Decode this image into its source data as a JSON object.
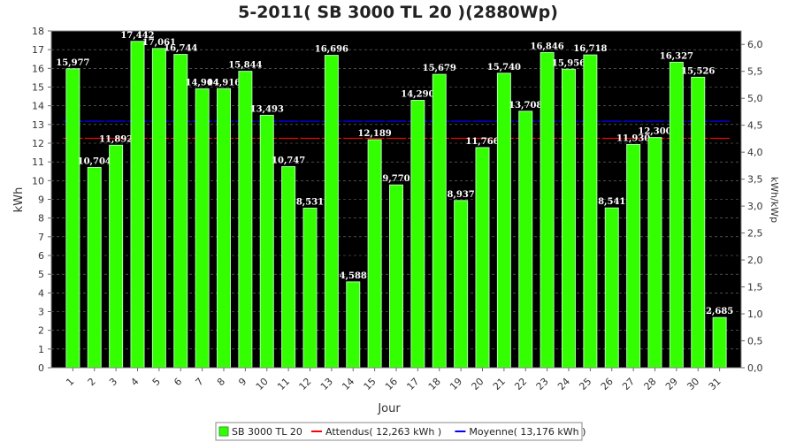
{
  "chart_data": {
    "type": "bar",
    "title": "5-2011( SB 3000 TL 20 )(2880Wp)",
    "xlabel": "Jour",
    "ylabel": "kWh",
    "y2label": "kWh/kWp",
    "ylim": [
      0,
      18
    ],
    "y2lim": [
      0,
      6.25
    ],
    "y2_ticks": [
      "0,0",
      "0,5",
      "1,0",
      "1,5",
      "2,0",
      "2,5",
      "3,0",
      "3,5",
      "4,0",
      "4,5",
      "5,0",
      "5,5",
      "6,0"
    ],
    "grid": true,
    "legend_position": "bottom",
    "categories": [
      "1",
      "2",
      "3",
      "4",
      "5",
      "6",
      "7",
      "8",
      "9",
      "10",
      "11",
      "12",
      "13",
      "14",
      "15",
      "16",
      "17",
      "18",
      "19",
      "20",
      "21",
      "22",
      "23",
      "24",
      "25",
      "26",
      "27",
      "28",
      "29",
      "30",
      "31"
    ],
    "series": [
      {
        "name": "SB 3000 TL 20",
        "values": [
          15.977,
          10.704,
          11.892,
          17.442,
          17.061,
          16.744,
          14.904,
          14.916,
          15.844,
          13.493,
          10.747,
          8.531,
          16.696,
          4.588,
          12.189,
          9.77,
          14.29,
          15.679,
          8.937,
          11.766,
          15.74,
          13.708,
          16.846,
          15.956,
          16.718,
          8.541,
          11.93,
          12.3,
          16.327,
          15.526,
          2.685
        ],
        "labels": [
          "15,977",
          "10,704",
          "11,892",
          "17,442",
          "17,061",
          "16,744",
          "14,904",
          "14,916",
          "15,844",
          "13,493",
          "10,747",
          "8,531",
          "16,696",
          "4,588",
          "12,189",
          "9,770",
          "14,290",
          "15,679",
          "8,937",
          "11,766",
          "15,740",
          "13,708",
          "16,846",
          "15,956",
          "16,718",
          "8,541",
          "11,930",
          "12,300",
          "16,327",
          "15,526",
          "2,685"
        ],
        "color": "#33ff00"
      }
    ],
    "reference_lines": [
      {
        "name": "Attendus( 12,263 kWh )",
        "value": 12.263,
        "color": "#ff0000"
      },
      {
        "name": "Moyenne( 13,176 kWh )",
        "value": 13.176,
        "color": "#0000ff"
      }
    ],
    "plot_background": "#000000"
  }
}
